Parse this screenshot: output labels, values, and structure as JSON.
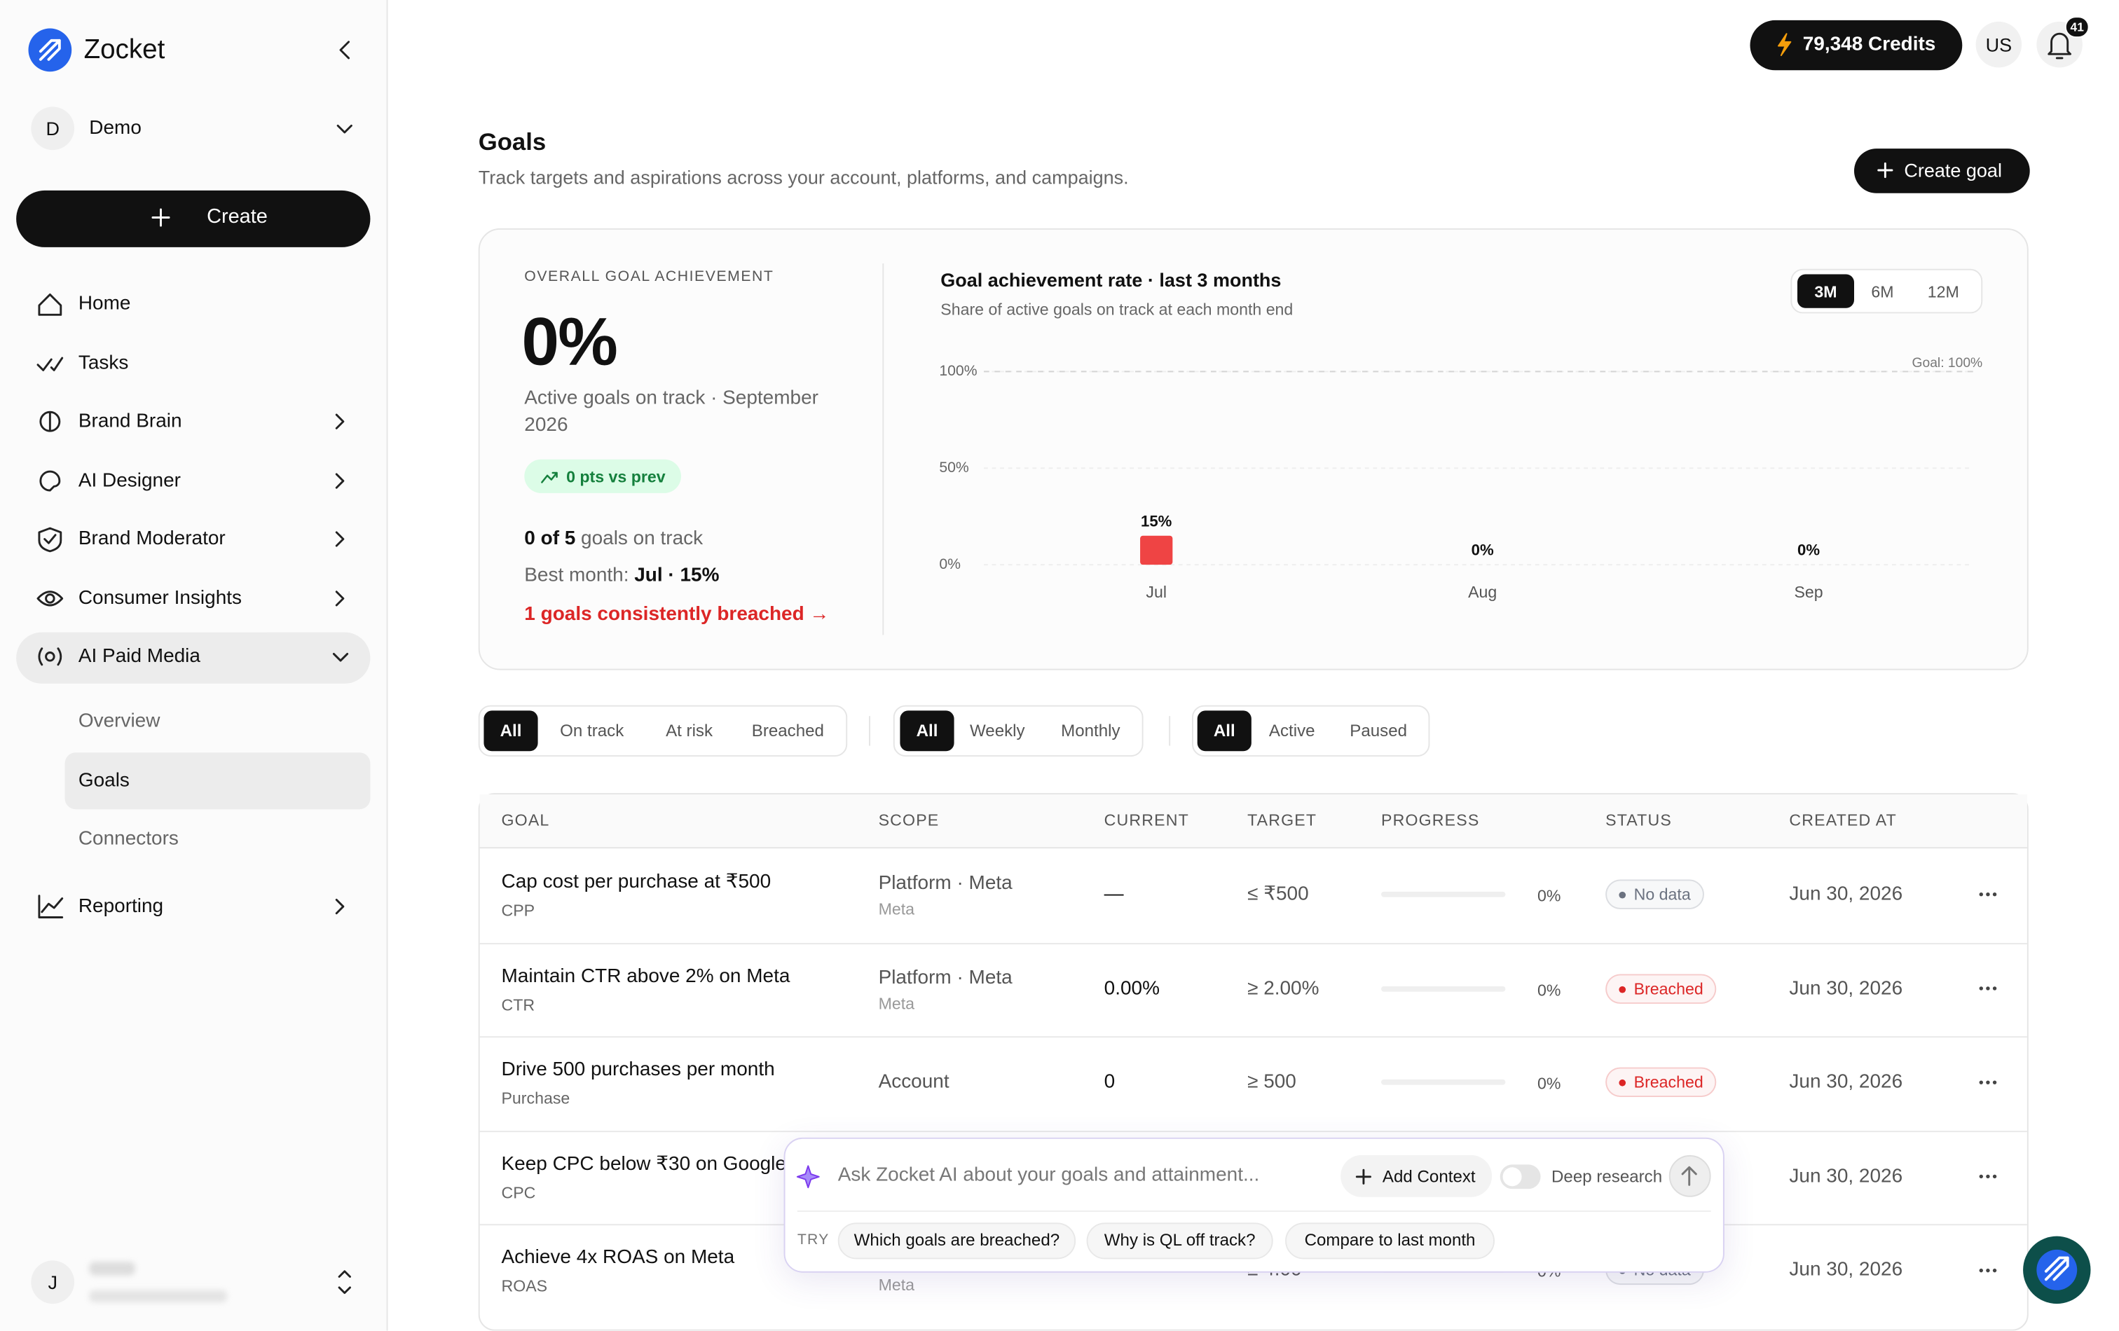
{
  "sidebar": {
    "brand": "Zocket",
    "workspace": {
      "initial": "D",
      "name": "Demo"
    },
    "create": "Create",
    "nav": [
      "Home",
      "Tasks",
      "Brand Brain",
      "AI Designer",
      "Brand Moderator",
      "Consumer Insights",
      "AI Paid Media"
    ],
    "subnav": [
      "Overview",
      "Goals",
      "Connectors"
    ],
    "reporting": "Reporting",
    "user_initial": "J"
  },
  "topbar": {
    "credits": "79,348 Credits",
    "locale": "US",
    "notifications": "41"
  },
  "header": {
    "title": "Goals",
    "subtitle": "Track targets and aspirations across your account, platforms, and campaigns.",
    "create_button": "Create goal"
  },
  "summary": {
    "label": "OVERALL GOAL ACHIEVEMENT",
    "value": "0%",
    "caption": "Active goals on track · September 2026",
    "delta": "0 pts vs prev",
    "on_track_count": "0 of 5",
    "on_track_text": "goals on track",
    "best_month_label": "Best month:",
    "best_month_value": "Jul · 15%",
    "breached_link": "1 goals consistently breached →",
    "ranges": [
      "3M",
      "6M",
      "12M"
    ]
  },
  "chart_data": {
    "type": "bar",
    "title": "Goal achievement rate · last 3 months",
    "subtitle": "Share of active goals on track at each month end",
    "categories": [
      "Jul",
      "Aug",
      "Sep"
    ],
    "values": [
      15,
      0,
      0
    ],
    "value_labels": [
      "15%",
      "0%",
      "0%"
    ],
    "color": "#ef4444",
    "ylim": [
      0,
      100
    ],
    "yticks": [
      {
        "value": 0,
        "label": "0%"
      },
      {
        "value": 50,
        "label": "50%"
      },
      {
        "value": 100,
        "label": "100%"
      }
    ],
    "grid": true,
    "annotations": [
      {
        "value": 100,
        "text": "Goal: 100%"
      }
    ]
  },
  "filters": [
    [
      "All",
      "On track",
      "At risk",
      "Breached"
    ],
    [
      "All",
      "Weekly",
      "Monthly"
    ],
    [
      "All",
      "Active",
      "Paused"
    ]
  ],
  "table": {
    "columns": [
      "GOAL",
      "SCOPE",
      "CURRENT",
      "TARGET",
      "PROGRESS",
      "STATUS",
      "CREATED AT"
    ],
    "rows": [
      {
        "goal": "Cap cost per purchase at ₹500",
        "metric": "CPP",
        "scope": "Platform · Meta",
        "scope_detail": "Meta",
        "current": "—",
        "target": "≤ ₹500",
        "progress": "0%",
        "status": "No data",
        "status_color": "#6b7280",
        "created": "Jun 30, 2026"
      },
      {
        "goal": "Maintain CTR above 2% on Meta",
        "metric": "CTR",
        "scope": "Platform · Meta",
        "scope_detail": "Meta",
        "current": "0.00%",
        "target": "≥ 2.00%",
        "progress": "0%",
        "status": "Breached",
        "status_color": "#dc2626",
        "created": "Jun 30, 2026"
      },
      {
        "goal": "Drive 500 purchases per month",
        "metric": "Purchase",
        "scope": "Account",
        "current": "0",
        "target": "≥ 500",
        "progress": "0%",
        "status": "Breached",
        "status_color": "#dc2626",
        "created": "Jun 30, 2026"
      },
      {
        "goal": "Keep CPC below ₹30 on Google",
        "metric": "CPC",
        "created": "Jun 30, 2026"
      },
      {
        "goal": "Achieve 4x ROAS on Meta",
        "metric": "ROAS",
        "scope_detail": "Meta",
        "target": "≥ 4.00",
        "progress": "0%",
        "status": "No data",
        "status_color": "#6b7280",
        "created": "Jun 30, 2026"
      }
    ]
  },
  "assistant": {
    "placeholder": "Ask Zocket AI about your goals and attainment...",
    "add_context": "Add Context",
    "deep_research": "Deep research",
    "try_label": "TRY",
    "suggestions": [
      "Which goals are breached?",
      "Why is QL off track?",
      "Compare to last month"
    ]
  }
}
